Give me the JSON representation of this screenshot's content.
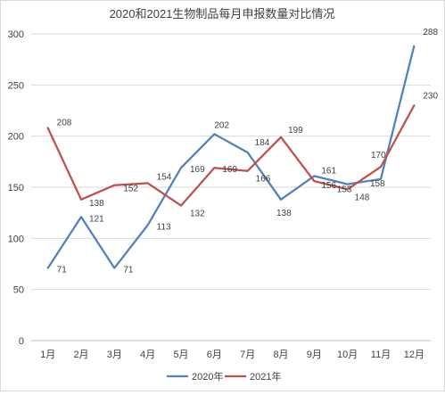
{
  "chart_data": {
    "type": "line",
    "title": "2020和2021生物制品每月申报数量对比情况",
    "xlabel": "",
    "ylabel": "",
    "categories": [
      "1月",
      "2月",
      "3月",
      "4月",
      "5月",
      "6月",
      "7月",
      "8月",
      "9月",
      "10月",
      "11月",
      "12月"
    ],
    "ylim": [
      0,
      300
    ],
    "yticks": [
      "0",
      "50",
      "100",
      "150",
      "200",
      "250",
      "300"
    ],
    "grid": true,
    "legend_position": "bottom",
    "series": [
      {
        "name": "2020年",
        "color": "#4e81bd",
        "values": [
          71,
          121,
          71,
          113,
          169,
          202,
          184,
          138,
          161,
          153,
          158,
          288
        ],
        "labels": [
          "71",
          "121",
          "71",
          "113",
          "169",
          "202",
          "184",
          "138",
          "161",
          "153",
          "158",
          "288"
        ]
      },
      {
        "name": "2021年",
        "color": "#c0504d",
        "values": [
          208,
          138,
          152,
          154,
          132,
          169,
          166,
          199,
          156,
          148,
          170,
          230
        ],
        "labels": [
          "208",
          "138",
          "152",
          "154",
          "132",
          "169",
          "166",
          "199",
          "156",
          "148",
          "170",
          "230"
        ]
      }
    ]
  }
}
